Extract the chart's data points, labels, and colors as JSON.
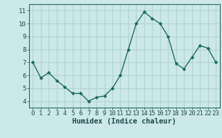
{
  "x": [
    0,
    1,
    2,
    3,
    4,
    5,
    6,
    7,
    8,
    9,
    10,
    11,
    12,
    13,
    14,
    15,
    16,
    17,
    18,
    19,
    20,
    21,
    22,
    23
  ],
  "y": [
    7.0,
    5.8,
    6.2,
    5.6,
    5.1,
    4.6,
    4.6,
    4.0,
    4.3,
    4.4,
    5.0,
    6.0,
    8.0,
    10.0,
    10.9,
    10.4,
    10.0,
    9.0,
    6.9,
    6.5,
    7.4,
    8.3,
    8.1,
    7.0
  ],
  "xlabel": "Humidex (Indice chaleur)",
  "ylim": [
    3.5,
    11.5
  ],
  "xlim": [
    -0.5,
    23.5
  ],
  "yticks": [
    4,
    5,
    6,
    7,
    8,
    9,
    10,
    11
  ],
  "xticks": [
    0,
    1,
    2,
    3,
    4,
    5,
    6,
    7,
    8,
    9,
    10,
    11,
    12,
    13,
    14,
    15,
    16,
    17,
    18,
    19,
    20,
    21,
    22,
    23
  ],
  "line_color": "#1a6b5a",
  "marker_color": "#1a6b5a",
  "bg_color": "#cce8e8",
  "grid_color": "#b0d4d4",
  "axis_label_color": "#1a4a4a",
  "tick_label_fontsize": 6.5,
  "xlabel_fontsize": 7.5,
  "marker_size": 2.5,
  "line_width": 1.0
}
